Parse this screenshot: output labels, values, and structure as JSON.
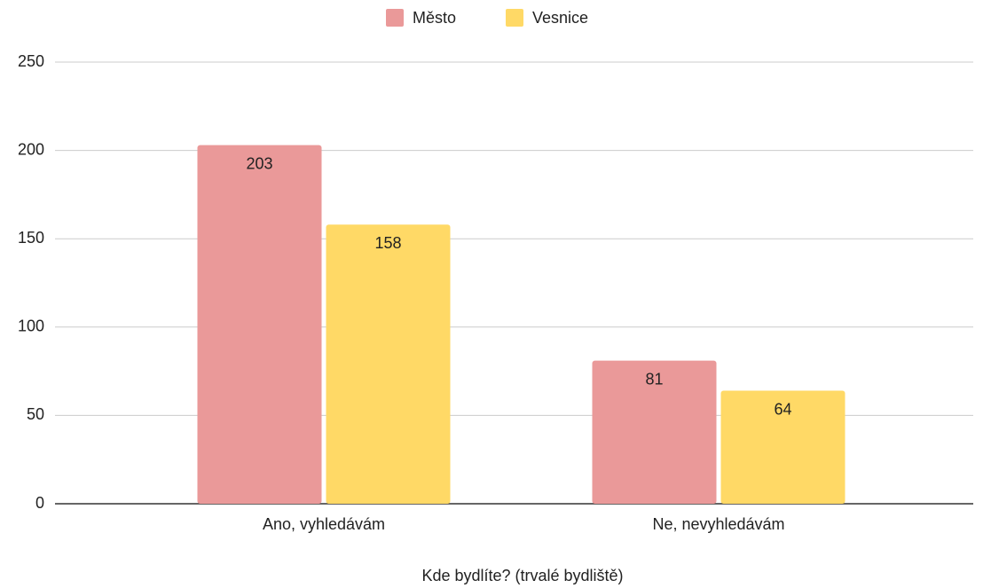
{
  "chart_data": {
    "type": "bar",
    "categories": [
      "Ano, vyhledávám",
      "Ne, nevyhledávám"
    ],
    "series": [
      {
        "name": "Město",
        "color": "#ea9999",
        "values": [
          203,
          81
        ]
      },
      {
        "name": "Vesnice",
        "color": "#ffd966",
        "values": [
          158,
          64
        ]
      }
    ],
    "x_label": "Kde bydlíte? (trvalé bydliště)",
    "ylim": [
      0,
      250
    ],
    "yticks": [
      0,
      50,
      100,
      150,
      200,
      250
    ],
    "grid": true,
    "legend": "top"
  }
}
